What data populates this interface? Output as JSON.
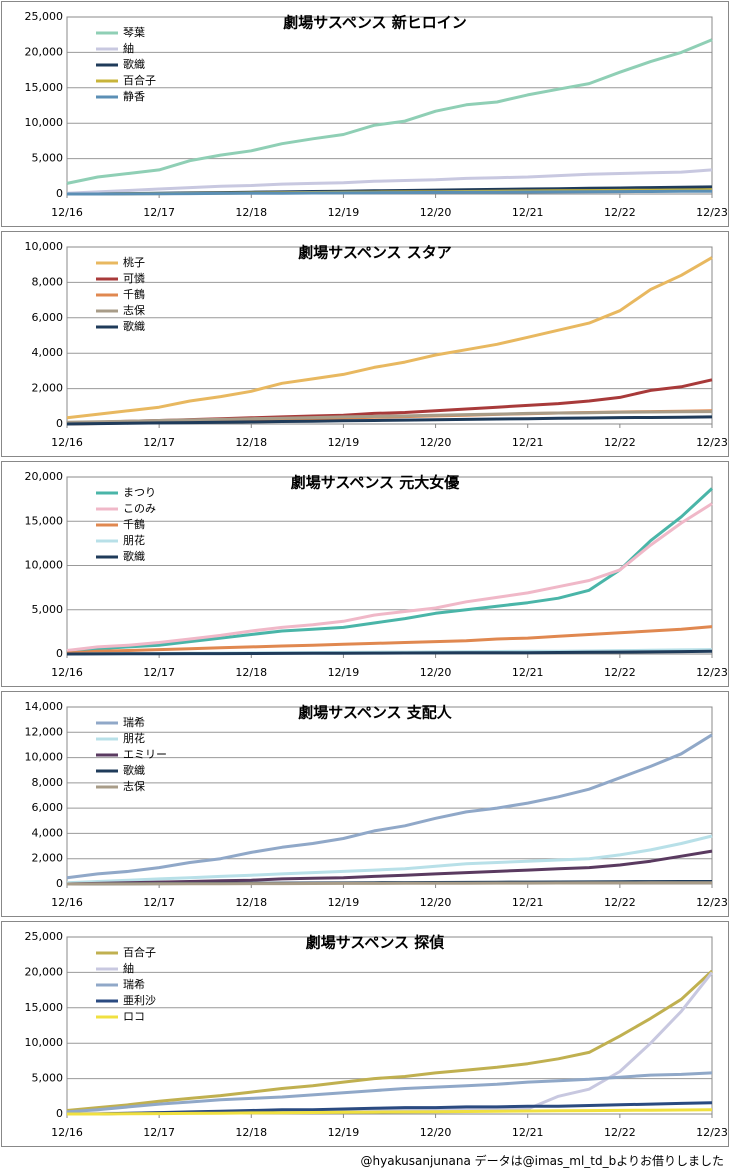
{
  "chart_data": [
    {
      "type": "line",
      "title": "劇場サスペンス 新ヒロイン",
      "categories": [
        "12/16",
        null,
        null,
        "12/17",
        null,
        null,
        "12/18",
        null,
        null,
        "12/19",
        null,
        null,
        "12/20",
        null,
        null,
        "12/21",
        null,
        null,
        "12/22",
        null,
        null,
        "12/23"
      ],
      "ylim": [
        0,
        25000
      ],
      "yticks": [
        0,
        {
          "value": 5000,
          "label": "5,000"
        },
        {
          "value": 10000,
          "label": "10,000"
        },
        {
          "value": 15000,
          "label": "15,000"
        },
        {
          "value": 20000,
          "label": "20,000"
        },
        {
          "value": 25000,
          "label": "25,000"
        }
      ],
      "grid": true,
      "series": [
        {
          "name": "琴葉",
          "color": "#8fcfb5",
          "values": [
            1500,
            2400,
            2900,
            3400,
            4700,
            5500,
            6100,
            7100,
            7800,
            8400,
            9700,
            10300,
            11700,
            12600,
            13000,
            14000,
            14800,
            15600,
            17200,
            18700,
            20000,
            21800
          ]
        },
        {
          "name": "紬",
          "color": "#c8c8e0",
          "values": [
            100,
            300,
            500,
            700,
            900,
            1100,
            1200,
            1400,
            1500,
            1600,
            1800,
            1900,
            2000,
            2200,
            2300,
            2400,
            2600,
            2800,
            2900,
            3000,
            3100,
            3400
          ]
        },
        {
          "name": "歌織",
          "color": "#1f3b5a",
          "values": [
            0,
            0,
            50,
            100,
            150,
            200,
            250,
            300,
            350,
            400,
            450,
            500,
            550,
            600,
            650,
            700,
            750,
            800,
            850,
            900,
            950,
            1000
          ]
        },
        {
          "name": "百合子",
          "color": "#c8b43a",
          "values": [
            0,
            0,
            30,
            60,
            90,
            120,
            150,
            180,
            210,
            240,
            270,
            300,
            330,
            360,
            390,
            420,
            450,
            480,
            510,
            540,
            570,
            600
          ]
        },
        {
          "name": "静香",
          "color": "#5b8fb5",
          "values": [
            0,
            0,
            20,
            40,
            60,
            80,
            100,
            120,
            140,
            160,
            180,
            200,
            220,
            240,
            260,
            280,
            300,
            320,
            340,
            360,
            380,
            400
          ]
        }
      ]
    },
    {
      "type": "line",
      "title": "劇場サスペンス スタア",
      "categories": [
        "12/16",
        null,
        null,
        "12/17",
        null,
        null,
        "12/18",
        null,
        null,
        "12/19",
        null,
        null,
        "12/20",
        null,
        null,
        "12/21",
        null,
        null,
        "12/22",
        null,
        null,
        "12/23"
      ],
      "ylim": [
        0,
        10000
      ],
      "yticks": [
        0,
        {
          "value": 2000,
          "label": "2,000"
        },
        {
          "value": 4000,
          "label": "4,000"
        },
        {
          "value": 6000,
          "label": "6,000"
        },
        {
          "value": 8000,
          "label": "8,000"
        },
        {
          "value": 10000,
          "label": "10,000"
        }
      ],
      "grid": true,
      "series": [
        {
          "name": "桃子",
          "color": "#e8b860",
          "values": [
            350,
            550,
            750,
            950,
            1300,
            1550,
            1850,
            2300,
            2550,
            2800,
            3200,
            3500,
            3900,
            4200,
            4500,
            4900,
            5300,
            5700,
            6400,
            7600,
            8400,
            9400
          ]
        },
        {
          "name": "可憐",
          "color": "#a83a3a",
          "values": [
            50,
            100,
            150,
            200,
            250,
            300,
            350,
            400,
            450,
            500,
            600,
            650,
            750,
            850,
            950,
            1050,
            1150,
            1300,
            1500,
            1900,
            2100,
            2500
          ]
        },
        {
          "name": "千鶴",
          "color": "#e08850",
          "values": [
            0,
            30,
            60,
            100,
            140,
            180,
            220,
            260,
            300,
            340,
            380,
            420,
            460,
            500,
            540,
            580,
            620,
            650,
            680,
            700,
            720,
            750
          ]
        },
        {
          "name": "志保",
          "color": "#a89c88",
          "values": [
            100,
            130,
            160,
            200,
            230,
            260,
            300,
            330,
            360,
            400,
            430,
            460,
            500,
            530,
            560,
            600,
            620,
            640,
            660,
            680,
            690,
            700
          ]
        },
        {
          "name": "歌織",
          "color": "#1f3b5a",
          "values": [
            0,
            20,
            40,
            60,
            80,
            100,
            120,
            140,
            160,
            180,
            200,
            220,
            240,
            260,
            280,
            300,
            320,
            340,
            360,
            370,
            380,
            400
          ]
        }
      ]
    },
    {
      "type": "line",
      "title": "劇場サスペンス 元大女優",
      "categories": [
        "12/16",
        null,
        null,
        "12/17",
        null,
        null,
        "12/18",
        null,
        null,
        "12/19",
        null,
        null,
        "12/20",
        null,
        null,
        "12/21",
        null,
        null,
        "12/22",
        null,
        null,
        "12/23"
      ],
      "ylim": [
        0,
        20000
      ],
      "yticks": [
        0,
        {
          "value": 5000,
          "label": "5,000"
        },
        {
          "value": 10000,
          "label": "10,000"
        },
        {
          "value": 15000,
          "label": "15,000"
        },
        {
          "value": 20000,
          "label": "20,000"
        }
      ],
      "grid": true,
      "series": [
        {
          "name": "まつり",
          "color": "#4ab5a8",
          "values": [
            300,
            600,
            800,
            1000,
            1400,
            1800,
            2200,
            2600,
            2800,
            3000,
            3500,
            4000,
            4600,
            5000,
            5400,
            5800,
            6300,
            7200,
            9500,
            12800,
            15500,
            18700
          ]
        },
        {
          "name": "このみ",
          "color": "#f0b8c8",
          "values": [
            400,
            800,
            1000,
            1300,
            1700,
            2100,
            2600,
            3000,
            3300,
            3700,
            4400,
            4800,
            5200,
            5900,
            6400,
            6900,
            7600,
            8300,
            9500,
            12300,
            14800,
            17000
          ]
        },
        {
          "name": "千鶴",
          "color": "#e08850",
          "values": [
            100,
            300,
            400,
            500,
            600,
            700,
            800,
            900,
            1000,
            1100,
            1200,
            1300,
            1400,
            1500,
            1700,
            1800,
            2000,
            2200,
            2400,
            2600,
            2800,
            3100
          ]
        },
        {
          "name": "朋花",
          "color": "#b8e0e8",
          "values": [
            0,
            20,
            40,
            60,
            80,
            100,
            120,
            140,
            160,
            180,
            200,
            220,
            240,
            260,
            280,
            300,
            320,
            340,
            380,
            420,
            460,
            500
          ]
        },
        {
          "name": "歌織",
          "color": "#1f3b5a",
          "values": [
            0,
            10,
            20,
            30,
            40,
            50,
            60,
            70,
            80,
            90,
            100,
            110,
            120,
            130,
            140,
            150,
            170,
            190,
            210,
            240,
            270,
            300
          ]
        }
      ]
    },
    {
      "type": "line",
      "title": "劇場サスペンス 支配人",
      "categories": [
        "12/16",
        null,
        null,
        "12/17",
        null,
        null,
        "12/18",
        null,
        null,
        "12/19",
        null,
        null,
        "12/20",
        null,
        null,
        "12/21",
        null,
        null,
        "12/22",
        null,
        null,
        "12/23"
      ],
      "ylim": [
        0,
        14000
      ],
      "yticks": [
        0,
        {
          "value": 2000,
          "label": "2,000"
        },
        {
          "value": 4000,
          "label": "4,000"
        },
        {
          "value": 6000,
          "label": "6,000"
        },
        {
          "value": 8000,
          "label": "8,000"
        },
        {
          "value": 10000,
          "label": "10,000"
        },
        {
          "value": 12000,
          "label": "12,000"
        },
        {
          "value": 14000,
          "label": "14,000"
        }
      ],
      "grid": true,
      "series": [
        {
          "name": "瑞希",
          "color": "#90a8c8",
          "values": [
            500,
            800,
            1000,
            1300,
            1700,
            2000,
            2500,
            2900,
            3200,
            3600,
            4200,
            4600,
            5200,
            5700,
            6000,
            6400,
            6900,
            7500,
            8400,
            9300,
            10300,
            11800
          ]
        },
        {
          "name": "朋花",
          "color": "#b8e0e8",
          "values": [
            100,
            200,
            300,
            400,
            500,
            600,
            700,
            800,
            900,
            1000,
            1100,
            1200,
            1400,
            1600,
            1700,
            1800,
            1900,
            2000,
            2300,
            2700,
            3200,
            3800
          ]
        },
        {
          "name": "エミリー",
          "color": "#5a3a60",
          "values": [
            0,
            50,
            100,
            150,
            200,
            250,
            300,
            400,
            450,
            500,
            600,
            700,
            800,
            900,
            1000,
            1100,
            1200,
            1300,
            1500,
            1800,
            2200,
            2600
          ]
        },
        {
          "name": "歌織",
          "color": "#1f3b5a",
          "values": [
            0,
            10,
            20,
            30,
            40,
            50,
            60,
            70,
            80,
            90,
            100,
            110,
            120,
            130,
            140,
            150,
            160,
            170,
            180,
            190,
            195,
            200
          ]
        },
        {
          "name": "志保",
          "color": "#a89c88",
          "values": [
            0,
            5,
            10,
            15,
            20,
            25,
            30,
            35,
            40,
            45,
            50,
            55,
            60,
            65,
            70,
            75,
            80,
            85,
            90,
            95,
            98,
            100
          ]
        }
      ]
    },
    {
      "type": "line",
      "title": "劇場サスペンス 探偵",
      "categories": [
        "12/16",
        null,
        null,
        "12/17",
        null,
        null,
        "12/18",
        null,
        null,
        "12/19",
        null,
        null,
        "12/20",
        null,
        null,
        "12/21",
        null,
        null,
        "12/22",
        null,
        null,
        "12/23"
      ],
      "ylim": [
        0,
        25000
      ],
      "yticks": [
        0,
        {
          "value": 5000,
          "label": "5,000"
        },
        {
          "value": 10000,
          "label": "10,000"
        },
        {
          "value": 15000,
          "label": "15,000"
        },
        {
          "value": 20000,
          "label": "20,000"
        },
        {
          "value": 25000,
          "label": "25,000"
        }
      ],
      "grid": true,
      "series": [
        {
          "name": "百合子",
          "color": "#c0b050",
          "values": [
            500,
            900,
            1300,
            1800,
            2200,
            2600,
            3100,
            3600,
            4000,
            4500,
            5000,
            5300,
            5800,
            6200,
            6600,
            7100,
            7800,
            8700,
            11000,
            13500,
            16200,
            20200
          ]
        },
        {
          "name": "紬",
          "color": "#c8c8e0",
          "values": [
            0,
            100,
            100,
            200,
            200,
            300,
            300,
            300,
            400,
            400,
            500,
            500,
            500,
            600,
            600,
            700,
            2500,
            3500,
            6000,
            10000,
            14500,
            20000
          ]
        },
        {
          "name": "瑞希",
          "color": "#90a8c8",
          "values": [
            300,
            600,
            1000,
            1400,
            1700,
            2000,
            2200,
            2400,
            2700,
            3000,
            3300,
            3600,
            3800,
            4000,
            4200,
            4500,
            4700,
            4900,
            5200,
            5500,
            5600,
            5800
          ]
        },
        {
          "name": "亜利沙",
          "color": "#2a4a80",
          "values": [
            0,
            0,
            100,
            200,
            300,
            400,
            500,
            600,
            600,
            700,
            800,
            900,
            900,
            1000,
            1000,
            1100,
            1100,
            1200,
            1300,
            1400,
            1500,
            1600
          ]
        },
        {
          "name": "ロコ",
          "color": "#f0e040",
          "values": [
            0,
            0,
            30,
            60,
            90,
            120,
            150,
            180,
            210,
            240,
            270,
            300,
            330,
            360,
            390,
            420,
            450,
            480,
            510,
            540,
            570,
            600
          ]
        }
      ]
    }
  ],
  "footer": "@hyakusanjunana データは@imas_ml_td_bよりお借りしました"
}
